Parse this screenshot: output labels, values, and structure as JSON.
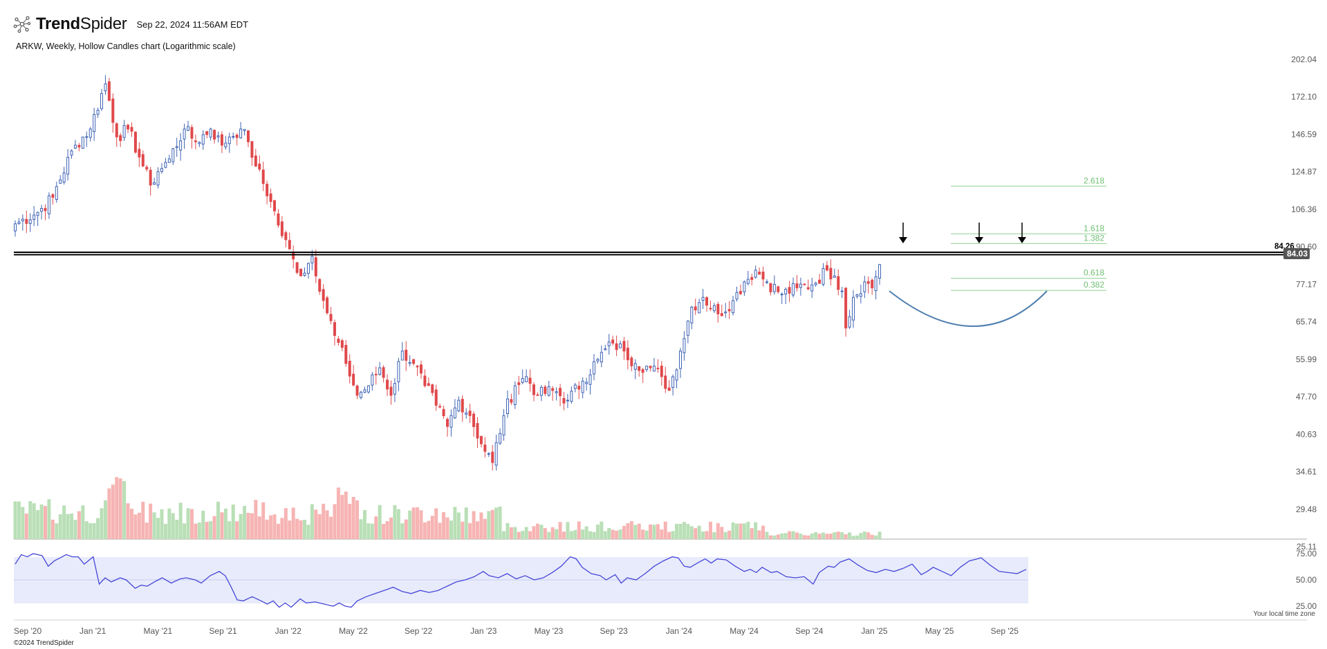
{
  "header": {
    "brand_bold": "Trend",
    "brand_light": "Spider",
    "timestamp": "Sep 22, 2024 11:56AM EDT",
    "logo_icon": "spider-network-icon"
  },
  "chart_title": "ARKW, Weekly, Hollow Candles chart (Logarithmic scale)",
  "copyright": "©2024 TrendSpider",
  "timezone_note": "Your local time zone",
  "colors": {
    "up": "#3d63b4",
    "down": "#e0484b",
    "vol_up": "#b9dfb6",
    "vol_down": "#f6b4b3",
    "rsi_line": "#4646d8",
    "rsi_band": "#e8ebfb",
    "fib": "#8fcf8f",
    "curve": "#4f7fb0"
  },
  "chart_data": {
    "type": "candlestick",
    "symbol": "ARKW",
    "interval": "Weekly",
    "scale": "log",
    "y_ticks": [
      "202.04",
      "172.10",
      "146.59",
      "124.87",
      "106.36",
      "90.60",
      "77.17",
      "65.74",
      "55.99",
      "47.70",
      "40.63",
      "34.61",
      "29.48",
      "25.11"
    ],
    "ylim": [
      23,
      205
    ],
    "x_ticks": [
      "Sep '20",
      "Jan '21",
      "May '21",
      "Sep '21",
      "Jan '22",
      "May '22",
      "Sep '22",
      "Jan '23",
      "May '23",
      "Sep '23",
      "Jan '24",
      "May '24",
      "Sep '24",
      "Jan '25",
      "May '25",
      "Sep '25"
    ],
    "resistance": {
      "value": 84.26,
      "label": "84.26"
    },
    "current_price": {
      "value": 84.03,
      "label": "84.03"
    },
    "fib_levels": [
      {
        "label": "2.618",
        "value": 117.5
      },
      {
        "label": "1.618",
        "value": 95.8
      },
      {
        "label": "1.382",
        "value": 91.9
      },
      {
        "label": "0.618",
        "value": 79.2
      },
      {
        "label": "0.382",
        "value": 75.2
      }
    ],
    "rsi_ticks": [
      "75.00",
      "50.00",
      "25.00"
    ],
    "rsi_band": [
      30,
      70
    ],
    "annotations": [
      "down arrow Apr '24",
      "down arrow Aug '24",
      "down arrow Sep '24",
      "rounded bottom arc Apr–Oct '24"
    ],
    "weekly_close_anchors": [
      [
        0,
        100
      ],
      [
        6,
        105
      ],
      [
        10,
        112
      ],
      [
        16,
        140
      ],
      [
        20,
        150
      ],
      [
        24,
        182
      ],
      [
        27,
        145
      ],
      [
        30,
        150
      ],
      [
        34,
        128
      ],
      [
        36,
        118
      ],
      [
        38,
        125
      ],
      [
        41,
        132
      ],
      [
        45,
        150
      ],
      [
        48,
        142
      ],
      [
        52,
        150
      ],
      [
        55,
        140
      ],
      [
        57,
        145
      ],
      [
        60,
        150
      ],
      [
        62,
        142
      ],
      [
        64,
        128
      ],
      [
        68,
        110
      ],
      [
        71,
        95
      ],
      [
        74,
        86
      ],
      [
        76,
        80
      ],
      [
        79,
        87
      ],
      [
        82,
        72
      ],
      [
        85,
        62
      ],
      [
        88,
        55
      ],
      [
        91,
        48
      ],
      [
        94,
        50
      ],
      [
        97,
        54
      ],
      [
        100,
        48
      ],
      [
        103,
        58
      ],
      [
        106,
        55
      ],
      [
        109,
        50
      ],
      [
        112,
        46
      ],
      [
        115,
        42
      ],
      [
        118,
        47
      ],
      [
        121,
        44
      ],
      [
        124,
        39
      ],
      [
        127,
        36
      ],
      [
        130,
        44
      ],
      [
        133,
        50
      ],
      [
        136,
        52
      ],
      [
        139,
        48
      ],
      [
        143,
        49
      ],
      [
        147,
        47
      ],
      [
        151,
        51
      ],
      [
        155,
        56
      ],
      [
        159,
        60
      ],
      [
        162,
        58
      ],
      [
        165,
        55
      ],
      [
        169,
        54
      ],
      [
        172,
        52
      ],
      [
        174,
        49
      ],
      [
        177,
        58
      ],
      [
        180,
        70
      ],
      [
        183,
        73
      ],
      [
        187,
        68
      ],
      [
        191,
        72
      ],
      [
        194,
        78
      ],
      [
        197,
        82
      ],
      [
        200,
        78
      ],
      [
        204,
        74
      ],
      [
        208,
        76
      ],
      [
        212,
        77
      ],
      [
        216,
        82
      ],
      [
        218,
        80
      ],
      [
        220,
        75
      ],
      [
        221,
        64
      ],
      [
        223,
        73
      ],
      [
        226,
        78
      ],
      [
        228,
        76
      ],
      [
        230,
        84
      ]
    ],
    "rsi_anchors": [
      [
        0,
        65
      ],
      [
        2,
        74
      ],
      [
        4,
        72
      ],
      [
        6,
        75
      ],
      [
        9,
        73
      ],
      [
        11,
        63
      ],
      [
        13,
        68
      ],
      [
        15,
        71
      ],
      [
        17,
        74
      ],
      [
        19,
        72
      ],
      [
        21,
        72
      ],
      [
        23,
        65
      ],
      [
        26,
        72
      ],
      [
        28,
        46
      ],
      [
        30,
        52
      ],
      [
        32,
        48
      ],
      [
        35,
        52
      ],
      [
        37,
        50
      ],
      [
        40,
        42
      ],
      [
        42,
        45
      ],
      [
        44,
        44
      ],
      [
        47,
        49
      ],
      [
        49,
        52
      ],
      [
        52,
        47
      ],
      [
        55,
        51
      ],
      [
        57,
        52
      ],
      [
        60,
        50
      ],
      [
        62,
        47
      ],
      [
        65,
        54
      ],
      [
        68,
        58
      ],
      [
        70,
        54
      ],
      [
        72,
        43
      ],
      [
        74,
        31
      ],
      [
        76,
        30
      ],
      [
        79,
        34
      ],
      [
        82,
        30
      ],
      [
        84,
        27
      ],
      [
        86,
        30
      ],
      [
        88,
        24
      ],
      [
        90,
        28
      ],
      [
        92,
        24
      ],
      [
        95,
        32
      ],
      [
        97,
        28
      ],
      [
        100,
        29
      ],
      [
        103,
        27
      ],
      [
        106,
        25
      ],
      [
        108,
        28
      ],
      [
        110,
        25
      ],
      [
        112,
        24
      ],
      [
        114,
        30
      ],
      [
        117,
        34
      ],
      [
        120,
        37
      ],
      [
        123,
        40
      ],
      [
        126,
        43
      ],
      [
        129,
        39
      ],
      [
        132,
        37
      ],
      [
        135,
        40
      ],
      [
        138,
        38
      ],
      [
        141,
        40
      ],
      [
        144,
        44
      ],
      [
        147,
        48
      ],
      [
        150,
        50
      ],
      [
        153,
        53
      ],
      [
        156,
        58
      ],
      [
        158,
        54
      ],
      [
        161,
        52
      ],
      [
        164,
        56
      ],
      [
        167,
        51
      ],
      [
        170,
        54
      ],
      [
        173,
        50
      ],
      [
        176,
        52
      ],
      [
        179,
        57
      ],
      [
        182,
        63
      ],
      [
        185,
        72
      ],
      [
        187,
        70
      ],
      [
        189,
        62
      ],
      [
        192,
        56
      ],
      [
        195,
        54
      ],
      [
        197,
        50
      ],
      [
        200,
        55
      ],
      [
        202,
        47
      ],
      [
        204,
        52
      ],
      [
        207,
        50
      ],
      [
        210,
        56
      ],
      [
        213,
        63
      ],
      [
        216,
        68
      ],
      [
        219,
        72
      ],
      [
        221,
        71
      ],
      [
        223,
        63
      ],
      [
        225,
        62
      ],
      [
        228,
        67
      ],
      [
        230,
        70
      ],
      [
        232,
        66
      ],
      [
        234,
        70
      ],
      [
        237,
        69
      ],
      [
        240,
        63
      ],
      [
        243,
        58
      ],
      [
        245,
        60
      ],
      [
        247,
        57
      ],
      [
        249,
        62
      ],
      [
        252,
        57
      ],
      [
        254,
        58
      ],
      [
        257,
        53
      ],
      [
        260,
        52
      ],
      [
        263,
        53
      ],
      [
        266,
        46
      ],
      [
        268,
        57
      ],
      [
        271,
        63
      ],
      [
        273,
        62
      ],
      [
        275,
        67
      ],
      [
        278,
        70
      ],
      [
        281,
        64
      ],
      [
        284,
        59
      ],
      [
        287,
        57
      ],
      [
        290,
        60
      ],
      [
        293,
        58
      ],
      [
        296,
        61
      ],
      [
        299,
        65
      ],
      [
        302,
        55
      ],
      [
        304,
        58
      ],
      [
        306,
        62
      ],
      [
        309,
        58
      ],
      [
        312,
        54
      ],
      [
        315,
        62
      ],
      [
        318,
        68
      ],
      [
        322,
        71
      ],
      [
        325,
        64
      ],
      [
        328,
        58
      ],
      [
        331,
        57
      ],
      [
        334,
        56
      ],
      [
        337,
        60
      ]
    ]
  }
}
